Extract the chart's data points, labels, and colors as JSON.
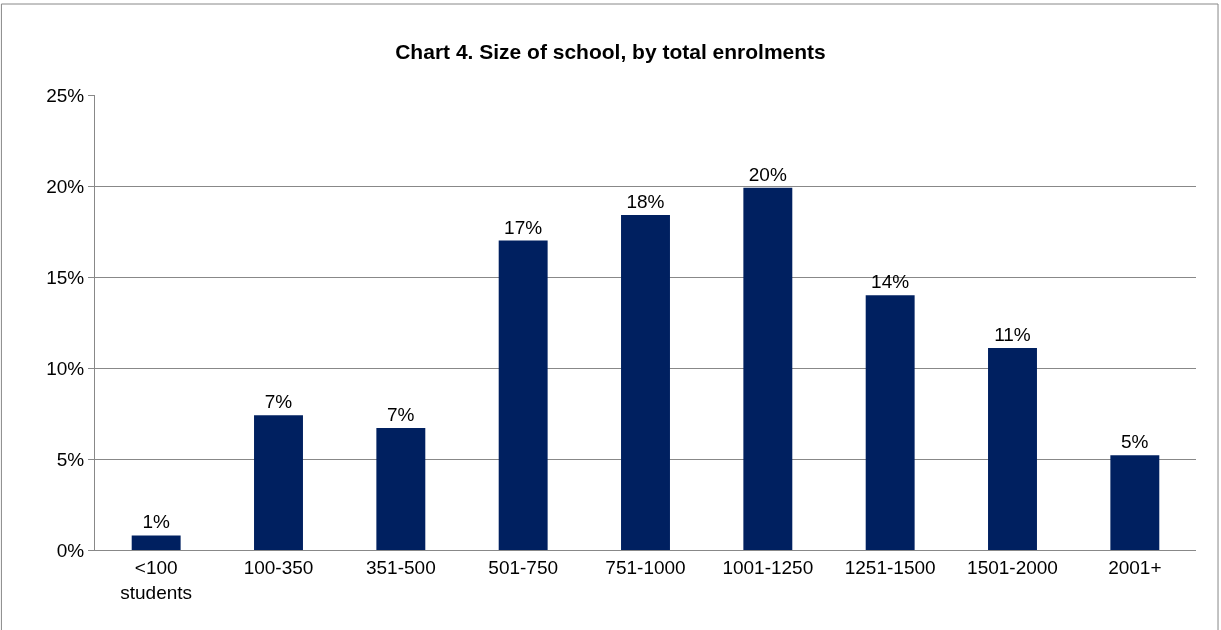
{
  "chart_data": {
    "type": "bar",
    "title": "Chart 4. Size of school, by total enrolments",
    "categories": [
      "<100 students",
      "100-350",
      "351-500",
      "501-750",
      "751-1000",
      "1001-1250",
      "1251-1500",
      "1501-2000",
      "2001+"
    ],
    "values": [
      0.8,
      7.4,
      6.7,
      17.0,
      18.4,
      19.9,
      14.0,
      11.1,
      5.2
    ],
    "value_labels": [
      "1%",
      "7%",
      "7%",
      "17%",
      "18%",
      "20%",
      "14%",
      "11%",
      "5%"
    ],
    "color": "#002060",
    "ylim": [
      0,
      25
    ],
    "yticks": [
      {
        "value": 0,
        "label": "0%"
      },
      {
        "value": 5,
        "label": "5%"
      },
      {
        "value": 10,
        "label": "10%"
      },
      {
        "value": 15,
        "label": "15%"
      },
      {
        "value": 20,
        "label": "20%"
      },
      {
        "value": 25,
        "label": "25%"
      }
    ],
    "grid": "y"
  }
}
